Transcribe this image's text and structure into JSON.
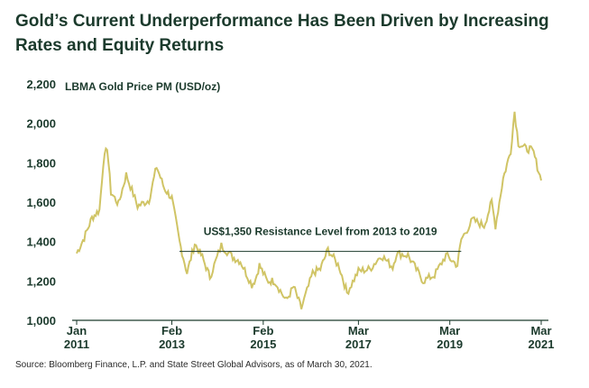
{
  "title": "Gold’s Current Underperformance Has Been Driven by Increasing Rates and Equity Returns",
  "source": "Source: Bloomberg Finance, L.P. and State Street Global Advisors, as of March 30, 2021.",
  "colors": {
    "series": "#d0c465",
    "text": "#1b3a2c",
    "axis": "#1b3a2c",
    "line": "#1b3a2c"
  },
  "chart_data": {
    "type": "line",
    "title": "Gold’s Current Underperformance Has Been Driven by Increasing Rates and Equity Returns",
    "ylabel": "LBMA Gold Price PM (USD/oz)",
    "ylim": [
      1000,
      2200
    ],
    "yticks": [
      "1,000",
      "1,200",
      "1,400",
      "1,600",
      "1,800",
      "2,000",
      "2,200"
    ],
    "xlim": [
      "2011-01",
      "2021-03"
    ],
    "xticks": [
      {
        "top": "Jan",
        "bottom": "2011",
        "date": "2011-01"
      },
      {
        "top": "Feb",
        "bottom": "2013",
        "date": "2013-02"
      },
      {
        "top": "Feb",
        "bottom": "2015",
        "date": "2015-02"
      },
      {
        "top": "Mar",
        "bottom": "2017",
        "date": "2017-03"
      },
      {
        "top": "Mar",
        "bottom": "2019",
        "date": "2019-03"
      },
      {
        "top": "Mar",
        "bottom": "2021",
        "date": "2021-03"
      }
    ],
    "grid": false,
    "annotation": {
      "text": "US$1,350 Resistance Level from 2013 to 2019",
      "value": 1350,
      "x_start": "2013-04",
      "x_end": "2019-06"
    },
    "series": [
      {
        "name": "",
        "x": [
          "2011-01",
          "2011-03",
          "2011-05",
          "2011-07",
          "2011-08",
          "2011-09",
          "2011-10",
          "2011-12",
          "2012-02",
          "2012-05",
          "2012-08",
          "2012-10",
          "2012-12",
          "2013-02",
          "2013-04",
          "2013-06",
          "2013-08",
          "2013-10",
          "2013-12",
          "2014-03",
          "2014-06",
          "2014-08",
          "2014-11",
          "2014-12",
          "2015-01",
          "2015-03",
          "2015-05",
          "2015-08",
          "2015-10",
          "2015-12",
          "2016-03",
          "2016-05",
          "2016-07",
          "2016-10",
          "2016-12",
          "2017-03",
          "2017-06",
          "2017-09",
          "2017-12",
          "2018-01",
          "2018-04",
          "2018-08",
          "2018-11",
          "2019-02",
          "2019-05",
          "2019-06",
          "2019-09",
          "2019-12",
          "2020-02",
          "2020-03",
          "2020-05",
          "2020-07",
          "2020-08",
          "2020-09",
          "2020-11",
          "2020-12",
          "2021-01",
          "2021-02",
          "2021-03"
        ],
        "values": [
          1340,
          1420,
          1520,
          1560,
          1800,
          1880,
          1650,
          1590,
          1740,
          1580,
          1610,
          1780,
          1670,
          1620,
          1400,
          1240,
          1390,
          1320,
          1220,
          1380,
          1320,
          1300,
          1180,
          1210,
          1280,
          1200,
          1200,
          1100,
          1170,
          1060,
          1240,
          1260,
          1360,
          1270,
          1140,
          1250,
          1260,
          1330,
          1270,
          1340,
          1330,
          1200,
          1230,
          1330,
          1280,
          1410,
          1510,
          1480,
          1600,
          1480,
          1720,
          1860,
          2060,
          1900,
          1870,
          1870,
          1850,
          1780,
          1710
        ]
      }
    ]
  }
}
